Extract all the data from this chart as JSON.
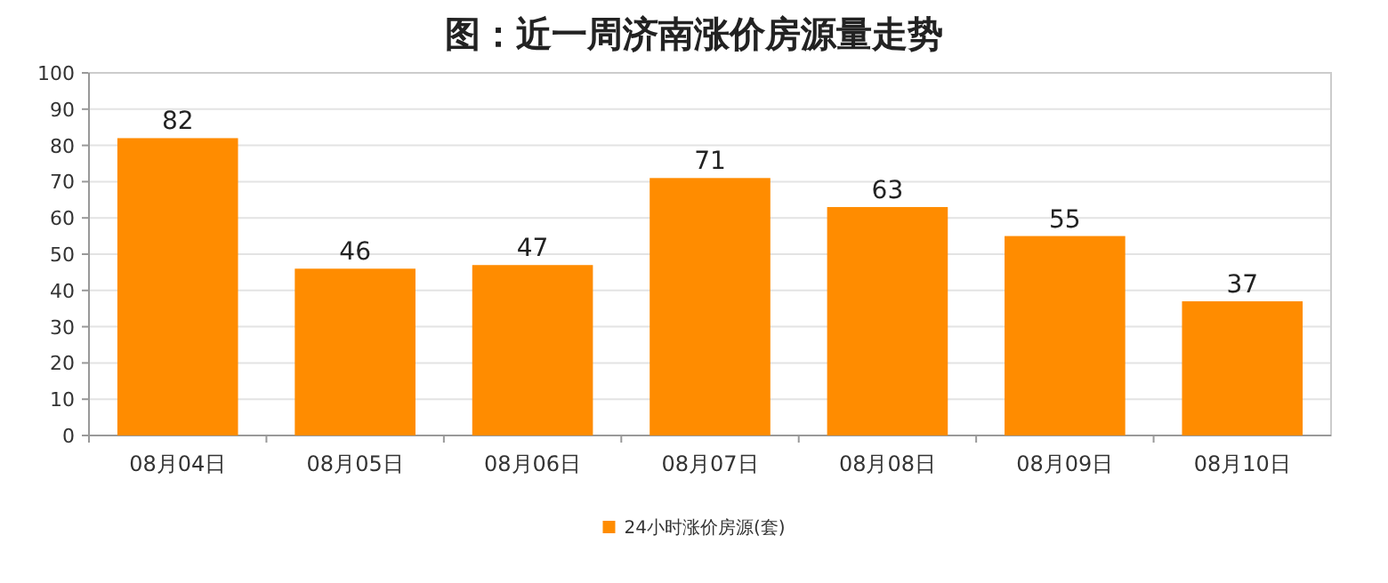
{
  "chart_data": {
    "type": "bar",
    "title": "图：近一周济南涨价房源量走势",
    "categories": [
      "08月04日",
      "08月05日",
      "08月06日",
      "08月07日",
      "08月08日",
      "08月09日",
      "08月10日"
    ],
    "series": [
      {
        "name": "24小时涨价房源(套)",
        "color": "#ff8c00",
        "values": [
          82,
          46,
          47,
          71,
          63,
          55,
          37
        ]
      }
    ],
    "ylim": [
      0,
      100
    ],
    "yticks": [
      0,
      10,
      20,
      30,
      40,
      50,
      60,
      70,
      80,
      90,
      100
    ],
    "grid": "y",
    "legend": "bottom",
    "data_labels": true
  }
}
